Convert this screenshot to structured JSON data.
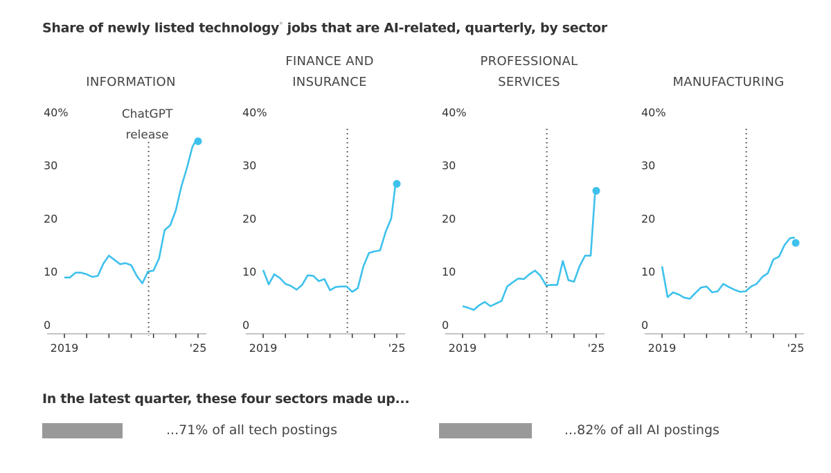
{
  "title": "Share of newly listed technology",
  "title_asterisk": "*",
  "title_rest": " jobs that are AI-related, quarterly, by sector",
  "annotation": [
    "ChatGPT",
    "release"
  ],
  "chart_data": [
    {
      "type": "line",
      "title": [
        "INFORMATION"
      ],
      "x_start": "2019 Q1",
      "x_end": "2025 Q1",
      "frequency": "quarterly",
      "xticks": [
        "2019",
        "'25"
      ],
      "yticks": [
        "0",
        "10",
        "20",
        "30",
        "40%"
      ],
      "ylim": [
        0,
        40
      ],
      "event_x": "late 2022",
      "values": [
        8.9,
        8.9,
        9.8,
        9.8,
        9.5,
        9.0,
        9.2,
        11.5,
        13.0,
        12.2,
        11.4,
        11.6,
        11.2,
        9.2,
        7.8,
        10.0,
        10.2,
        12.5,
        17.8,
        18.7,
        21.5,
        26.0,
        29.5,
        33.5,
        34.5
      ]
    },
    {
      "type": "line",
      "title": [
        "FINANCE AND",
        "INSURANCE"
      ],
      "x_start": "2019 Q1",
      "x_end": "2025 Q1",
      "frequency": "quarterly",
      "xticks": [
        "2019",
        "'25"
      ],
      "yticks": [
        "0",
        "10",
        "20",
        "30",
        "40%"
      ],
      "ylim": [
        0,
        40
      ],
      "event_x": "late 2022",
      "values": [
        10.3,
        7.6,
        9.5,
        8.8,
        7.7,
        7.3,
        6.6,
        7.5,
        9.3,
        9.2,
        8.2,
        8.6,
        6.5,
        7.1,
        7.2,
        7.2,
        6.2,
        6.9,
        11.0,
        13.5,
        13.8,
        14.0,
        17.5,
        20.0,
        26.5
      ]
    },
    {
      "type": "line",
      "title": [
        "PROFESSIONAL",
        "SERVICES"
      ],
      "x_start": "2019 Q1",
      "x_end": "2025 Q1",
      "frequency": "quarterly",
      "xticks": [
        "2019",
        "'25"
      ],
      "yticks": [
        "0",
        "10",
        "20",
        "30",
        "40%"
      ],
      "ylim": [
        0,
        40
      ],
      "event_x": "late 2022",
      "values": [
        3.5,
        3.2,
        2.8,
        3.7,
        4.3,
        3.5,
        4.0,
        4.5,
        7.2,
        8.0,
        8.7,
        8.6,
        9.5,
        10.2,
        9.2,
        7.4,
        7.5,
        7.5,
        12.0,
        8.4,
        8.1,
        11.0,
        13.0,
        13.0,
        25.2
      ]
    },
    {
      "type": "line",
      "title": [
        "MANUFACTURING"
      ],
      "x_start": "2019 Q1",
      "x_end": "2025 Q1",
      "frequency": "quarterly",
      "xticks": [
        "2019",
        "'25"
      ],
      "yticks": [
        "0",
        "10",
        "20",
        "30",
        "40%"
      ],
      "ylim": [
        0,
        40
      ],
      "event_x": "late 2022",
      "values": [
        11.0,
        5.2,
        6.1,
        5.7,
        5.1,
        4.9,
        6.0,
        7.0,
        7.2,
        6.1,
        6.3,
        7.7,
        7.1,
        6.6,
        6.2,
        6.3,
        7.2,
        7.7,
        9.0,
        9.7,
        12.3,
        12.8,
        15.0,
        16.3,
        15.4
      ]
    }
  ],
  "summary": {
    "heading": "In the latest quarter, these four sectors made up...",
    "items": [
      {
        "label": "...71% of all tech postings",
        "percent": 71
      },
      {
        "label": "...82% of all AI postings",
        "percent": 82
      }
    ]
  },
  "colors": {
    "line": "#3ec1ec",
    "bar": "#999999",
    "text": "#333333"
  }
}
